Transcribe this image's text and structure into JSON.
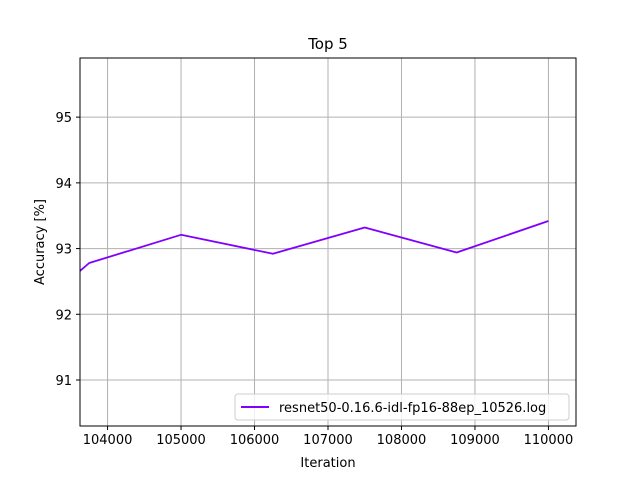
{
  "chart_data": {
    "type": "line",
    "title": "Top 5",
    "xlabel": "Iteration",
    "ylabel": "Accuracy [%]",
    "xlim": [
      103625,
      110375
    ],
    "ylim": [
      90.3,
      95.9
    ],
    "xticks": [
      104000,
      105000,
      106000,
      107000,
      108000,
      109000,
      110000
    ],
    "yticks": [
      91,
      92,
      93,
      94,
      95
    ],
    "grid": true,
    "legend_position": "lower-right",
    "series": [
      {
        "name": "resnet50-0.16.6-idl-fp16-88ep_10526.log",
        "color": "#8000ff",
        "x": [
          103625,
          103750,
          105000,
          106250,
          107500,
          108750,
          110000
        ],
        "y": [
          92.66,
          92.78,
          93.21,
          92.92,
          93.32,
          92.94,
          93.42
        ]
      }
    ]
  }
}
